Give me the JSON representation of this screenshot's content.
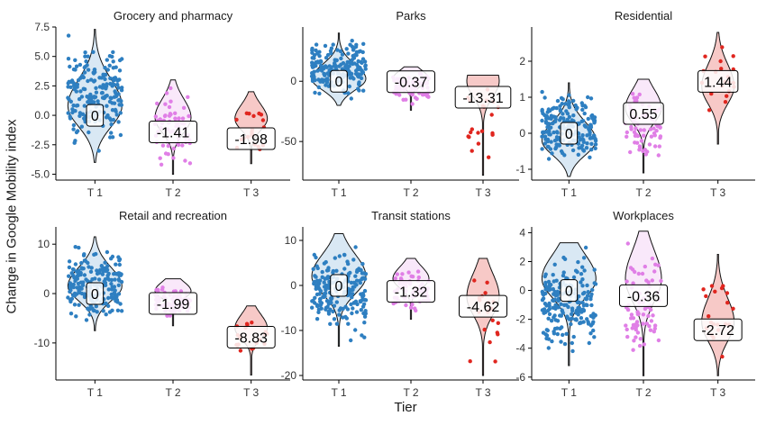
{
  "figure": {
    "ylabel": "Change in Google Mobility index",
    "xlabel": "Tier"
  },
  "colors": {
    "T 1": "#2e7fc1",
    "T 2": "#e07fe6",
    "T 3": "#e0261f"
  },
  "chart_data": [
    {
      "type": "violin",
      "title": "Grocery and pharmacy",
      "categories": [
        "T 1",
        "T 2",
        "T 3"
      ],
      "ylim": [
        -5.5,
        7.5
      ],
      "yticks": [
        -5.0,
        -2.5,
        0.0,
        2.5,
        5.0,
        7.5
      ],
      "ytick_labels": [
        "-5.0",
        "-2.5",
        "0.0",
        "2.5",
        "5.0",
        "7.5"
      ],
      "series": [
        {
          "category": "T 1",
          "min": -4.0,
          "max": 7.3,
          "mode": 0.8,
          "label": "0",
          "label_y": 0.0,
          "point_min": -3.6,
          "point_max": 7.2,
          "n": 200
        },
        {
          "category": "T 2",
          "min": -5.0,
          "max": 3.0,
          "mode": -0.2,
          "label": "-1.41",
          "label_y": -1.41,
          "point_min": -5.0,
          "point_max": 2.8,
          "n": 70
        },
        {
          "category": "T 3",
          "min": -4.1,
          "max": 2.0,
          "mode": -0.3,
          "label": "-1.98",
          "label_y": -1.98,
          "point_min": -4.1,
          "point_max": 1.8,
          "n": 20
        }
      ]
    },
    {
      "type": "violin",
      "title": "Parks",
      "categories": [
        "T 1",
        "T 2",
        "T 3"
      ],
      "ylim": [
        -82,
        45
      ],
      "yticks": [
        -50,
        0
      ],
      "ytick_labels": [
        "-50",
        "0"
      ],
      "series": [
        {
          "category": "T 1",
          "min": -20,
          "max": 40,
          "mode": 2,
          "label": "0",
          "label_y": 0,
          "point_min": -19,
          "point_max": 40,
          "n": 200
        },
        {
          "category": "T 2",
          "min": -24,
          "max": 12,
          "mode": 2,
          "label": "-0.37",
          "label_y": -0.37,
          "point_min": -22,
          "point_max": 12,
          "n": 70
        },
        {
          "category": "T 3",
          "min": -78,
          "max": 5,
          "mode": 0,
          "label": "-13.31",
          "label_y": -13.31,
          "point_min": -80,
          "point_max": 5,
          "n": 20
        }
      ]
    },
    {
      "type": "violin",
      "title": "Residential",
      "categories": [
        "T 1",
        "T 2",
        "T 3"
      ],
      "ylim": [
        -1.3,
        2.95
      ],
      "yticks": [
        -1,
        0,
        1,
        2
      ],
      "ytick_labels": [
        "-1",
        "0",
        "1",
        "2"
      ],
      "series": [
        {
          "category": "T 1",
          "min": -1.2,
          "max": 1.4,
          "mode": -0.2,
          "label": "0",
          "label_y": 0.0,
          "point_min": -1.15,
          "point_max": 1.35,
          "n": 200
        },
        {
          "category": "T 2",
          "min": -1.1,
          "max": 1.5,
          "mode": 0.7,
          "label": "0.55",
          "label_y": 0.55,
          "point_min": -1.1,
          "point_max": 1.5,
          "n": 70
        },
        {
          "category": "T 3",
          "min": -0.3,
          "max": 2.8,
          "mode": 1.3,
          "label": "1.44",
          "label_y": 1.44,
          "point_min": 0.3,
          "point_max": 2.8,
          "n": 20
        }
      ]
    },
    {
      "type": "violin",
      "title": "Retail and recreation",
      "categories": [
        "T 1",
        "T 2",
        "T 3"
      ],
      "ylim": [
        -17.5,
        13.5
      ],
      "yticks": [
        -10,
        0,
        10
      ],
      "ytick_labels": [
        "-10",
        "0",
        "10"
      ],
      "series": [
        {
          "category": "T 1",
          "min": -7.5,
          "max": 11.5,
          "mode": 1.5,
          "label": "0",
          "label_y": 0,
          "point_min": -7.0,
          "point_max": 11.0,
          "n": 200
        },
        {
          "category": "T 2",
          "min": -6.5,
          "max": 3.0,
          "mode": 0.5,
          "label": "-1.99",
          "label_y": -1.99,
          "point_min": -6.0,
          "point_max": 3.0,
          "n": 70
        },
        {
          "category": "T 3",
          "min": -16.5,
          "max": -2.5,
          "mode": -7.0,
          "label": "-8.83",
          "label_y": -8.83,
          "point_min": -16.0,
          "point_max": -3.0,
          "n": 20
        }
      ]
    },
    {
      "type": "violin",
      "title": "Transit stations",
      "categories": [
        "T 1",
        "T 2",
        "T 3"
      ],
      "ylim": [
        -21,
        13
      ],
      "yticks": [
        -20,
        -10,
        0,
        10
      ],
      "ytick_labels": [
        "-20",
        "-10",
        "0",
        "10"
      ],
      "series": [
        {
          "category": "T 1",
          "min": -13.5,
          "max": 11.5,
          "mode": 2.0,
          "label": "0",
          "label_y": 0,
          "point_min": -13.5,
          "point_max": 11.0,
          "n": 200
        },
        {
          "category": "T 2",
          "min": -7.5,
          "max": 6.0,
          "mode": 1.5,
          "label": "-1.32",
          "label_y": -1.32,
          "point_min": -7.0,
          "point_max": 5.5,
          "n": 70
        },
        {
          "category": "T 3",
          "min": -20.0,
          "max": 6.0,
          "mode": -2.5,
          "label": "-4.62",
          "label_y": -4.62,
          "point_min": -20.0,
          "point_max": 5.5,
          "n": 20
        }
      ]
    },
    {
      "type": "violin",
      "title": "Workplaces",
      "categories": [
        "T 1",
        "T 2",
        "T 3"
      ],
      "ylim": [
        -6.2,
        4.4
      ],
      "yticks": [
        -6,
        -4,
        -2,
        0,
        2,
        4
      ],
      "ytick_labels": [
        "-6",
        "-4",
        "-2",
        "0",
        "2",
        "4"
      ],
      "series": [
        {
          "category": "T 1",
          "min": -5.2,
          "max": 3.3,
          "mode": 0.8,
          "label": "0",
          "label_y": 0,
          "point_min": -5.1,
          "point_max": 3.3,
          "n": 200
        },
        {
          "category": "T 2",
          "min": -5.9,
          "max": 4.1,
          "mode": 0.8,
          "label": "-0.36",
          "label_y": -0.36,
          "point_min": -5.8,
          "point_max": 4.0,
          "n": 70
        },
        {
          "category": "T 3",
          "min": -5.9,
          "max": 2.5,
          "mode": -2.2,
          "label": "-2.72",
          "label_y": -2.72,
          "point_min": -5.8,
          "point_max": 2.5,
          "n": 20
        }
      ]
    }
  ]
}
